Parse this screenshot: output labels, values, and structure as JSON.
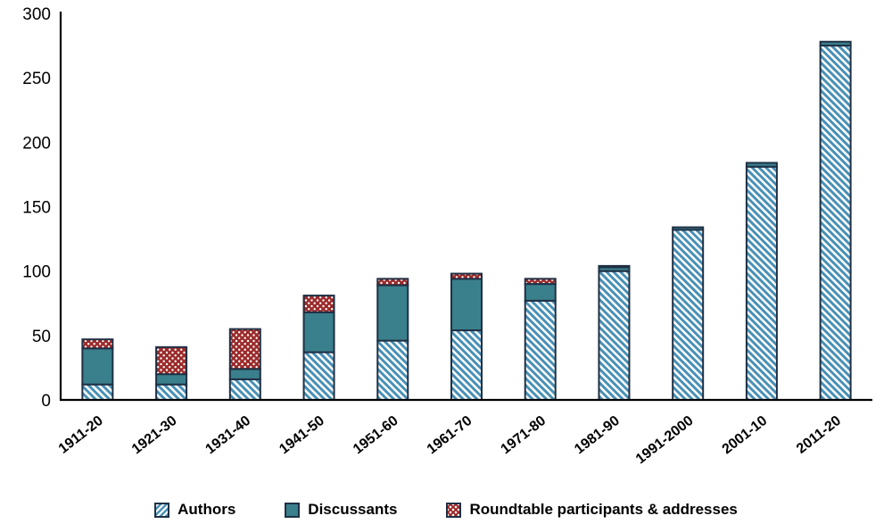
{
  "chart_data": {
    "type": "bar",
    "stacked": true,
    "title": "",
    "xlabel": "",
    "ylabel": "",
    "categories": [
      "1911-20",
      "1921-30",
      "1931-40",
      "1941-50",
      "1951-60",
      "1961-70",
      "1971-80",
      "1981-90",
      "1991-2000",
      "2001-10",
      "2011-20"
    ],
    "series": [
      {
        "name": "Authors",
        "pattern": "diagonal-hatch",
        "fill": "#ffffff",
        "stripe_color": "#4a90b5",
        "values": [
          12,
          12,
          16,
          37,
          46,
          54,
          77,
          100,
          132,
          181,
          275
        ]
      },
      {
        "name": "Discussants",
        "pattern": "solid",
        "color": "#3a7f8c",
        "values": [
          28,
          8,
          8,
          31,
          43,
          40,
          13,
          3,
          2,
          3,
          3
        ]
      },
      {
        "name": "Roundtable participants & addresses",
        "pattern": "white-dots",
        "color": "#9c2b2b",
        "dot_color": "#ffffff",
        "values": [
          7,
          21,
          31,
          13,
          5,
          4,
          4,
          1,
          0,
          0,
          0
        ]
      }
    ],
    "ylim": [
      0,
      300
    ],
    "yticks": [
      0,
      50,
      100,
      150,
      200,
      250,
      300
    ],
    "grid": false,
    "legend_position": "bottom",
    "axis_color": "#000000",
    "bar_outline": "#1f3044"
  }
}
